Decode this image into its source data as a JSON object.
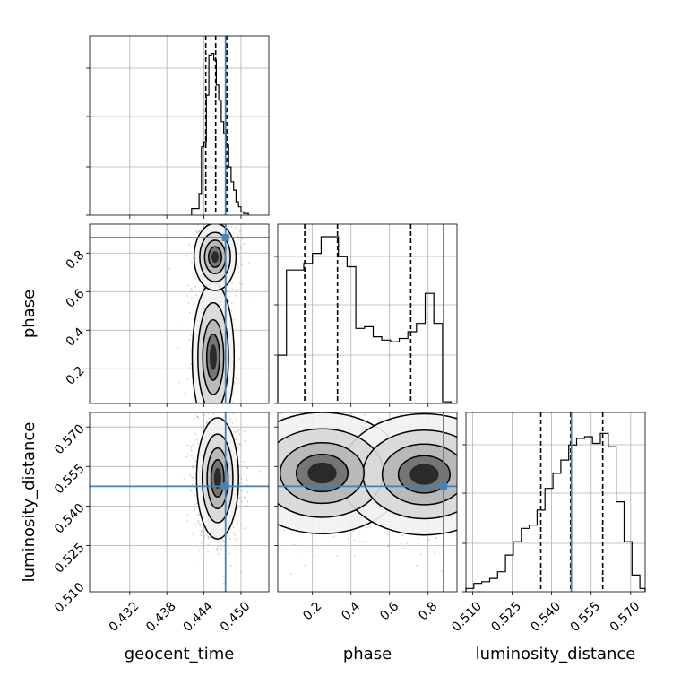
{
  "chart_data": {
    "type": "scatter",
    "subtype": "corner-plot",
    "parameters": [
      "geocent_time",
      "phase",
      "luminosity_distance"
    ],
    "axis_labels": {
      "geocent_time": "geocent_time",
      "phase": "phase",
      "luminosity_distance": "luminosity_distance"
    },
    "ranges": {
      "geocent_time": [
        0.4255,
        0.4545
      ],
      "phase": [
        0.02,
        0.95
      ],
      "luminosity_distance": [
        0.5075,
        0.5755
      ]
    },
    "ticks": {
      "geocent_time": [
        {
          "v": 0.432,
          "label": "0.432"
        },
        {
          "v": 0.438,
          "label": "0.438"
        },
        {
          "v": 0.444,
          "label": "0.444"
        },
        {
          "v": 0.45,
          "label": "0.450"
        }
      ],
      "phase": [
        {
          "v": 0.2,
          "label": "0.2"
        },
        {
          "v": 0.4,
          "label": "0.4"
        },
        {
          "v": 0.6,
          "label": "0.6"
        },
        {
          "v": 0.8,
          "label": "0.8"
        }
      ],
      "luminosity_distance": [
        {
          "v": 0.51,
          "label": "0.510"
        },
        {
          "v": 0.525,
          "label": "0.525"
        },
        {
          "v": 0.54,
          "label": "0.540"
        },
        {
          "v": 0.555,
          "label": "0.555"
        },
        {
          "v": 0.57,
          "label": "0.570"
        }
      ]
    },
    "truths": {
      "geocent_time": 0.4475,
      "phase": 0.88,
      "luminosity_distance": 0.5475
    },
    "quantiles": {
      "geocent_time": [
        0.4443,
        0.4459,
        0.4477
      ],
      "phase": [
        0.16,
        0.33,
        0.71
      ],
      "luminosity_distance": [
        0.5359,
        0.5472,
        0.5594
      ]
    },
    "histograms": {
      "geocent_time": {
        "edges": [
          0.442,
          0.4432,
          0.4436,
          0.444,
          0.4444,
          0.4448,
          0.4452,
          0.4456,
          0.446,
          0.4464,
          0.4468,
          0.4472,
          0.4476,
          0.448,
          0.4484,
          0.4488,
          0.4492,
          0.4496,
          0.45,
          0.4504,
          0.4512
        ],
        "counts": [
          0.04,
          0.13,
          0.41,
          0.44,
          0.72,
          0.96,
          0.97,
          0.93,
          0.78,
          0.69,
          0.56,
          0.49,
          0.42,
          0.29,
          0.2,
          0.15,
          0.08,
          0.05,
          0.02,
          0.01
        ]
      },
      "phase": {
        "edges": [
          0.02,
          0.065,
          0.11,
          0.155,
          0.2,
          0.245,
          0.29,
          0.335,
          0.38,
          0.425,
          0.47,
          0.515,
          0.56,
          0.605,
          0.65,
          0.695,
          0.74,
          0.785,
          0.83,
          0.875,
          0.92
        ],
        "counts": [
          0.29,
          0.8,
          0.8,
          0.84,
          0.9,
          1.0,
          1.0,
          0.88,
          0.82,
          0.45,
          0.46,
          0.4,
          0.38,
          0.37,
          0.39,
          0.43,
          0.48,
          0.66,
          0.48,
          0.01
        ]
      },
      "luminosity_distance": {
        "edges": [
          0.5075,
          0.5105,
          0.5135,
          0.5165,
          0.5195,
          0.5225,
          0.5255,
          0.5285,
          0.5315,
          0.5345,
          0.5375,
          0.5405,
          0.5435,
          0.5465,
          0.5495,
          0.5525,
          0.5555,
          0.5585,
          0.5615,
          0.5645,
          0.5675,
          0.5705,
          0.5735,
          0.5755
        ],
        "counts": [
          0.02,
          0.05,
          0.06,
          0.08,
          0.12,
          0.22,
          0.3,
          0.38,
          0.4,
          0.49,
          0.62,
          0.71,
          0.79,
          0.88,
          0.92,
          0.93,
          0.89,
          0.95,
          0.87,
          0.54,
          0.3,
          0.1,
          0.02
        ]
      }
    },
    "density_modes": [
      {
        "pair": [
          "geocent_time",
          "phase"
        ],
        "x": 0.4455,
        "y": 0.26,
        "weight": 1.0
      },
      {
        "pair": [
          "geocent_time",
          "phase"
        ],
        "x": 0.4458,
        "y": 0.78,
        "weight": 0.7
      },
      {
        "pair": [
          "geocent_time",
          "luminosity_distance"
        ],
        "x": 0.4462,
        "y": 0.5505,
        "weight": 1.0
      },
      {
        "pair": [
          "phase",
          "luminosity_distance"
        ],
        "x": 0.25,
        "y": 0.5525,
        "weight": 1.0
      },
      {
        "pair": [
          "phase",
          "luminosity_distance"
        ],
        "x": 0.78,
        "y": 0.552,
        "weight": 0.7
      }
    ],
    "colors": {
      "truth": "#4682b4",
      "hist": "#000000",
      "grid": "#b0b0b0",
      "scatter": "#808080"
    },
    "grid": true
  }
}
